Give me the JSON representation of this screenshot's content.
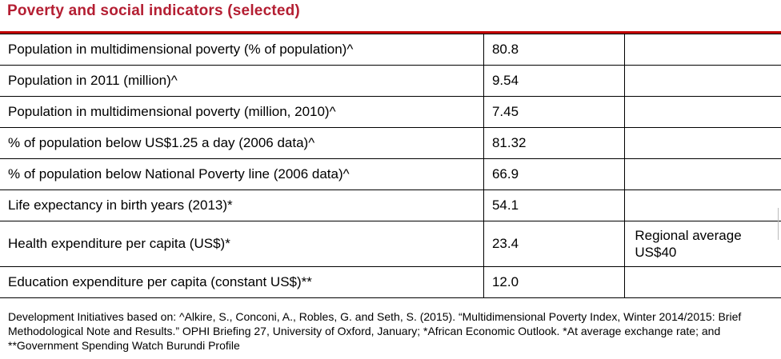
{
  "title": "Poverty and social indicators (selected)",
  "rows": [
    {
      "label": "Population in multidimensional poverty (% of population)^",
      "value": "80.8",
      "note": ""
    },
    {
      "label": "Population in 2011 (million)^",
      "value": "9.54",
      "note": ""
    },
    {
      "label": "Population in multidimensional poverty (million, 2010)^",
      "value": "7.45",
      "note": ""
    },
    {
      "label": "% of population below US$1.25 a day (2006 data)^",
      "value": "81.32",
      "note": ""
    },
    {
      "label": "% of population below National Poverty line (2006 data)^",
      "value": "66.9",
      "note": ""
    },
    {
      "label": "Life expectancy in birth years (2013)*",
      "value": "54.1",
      "note": ""
    },
    {
      "label": "Health expenditure per capita (US$)*",
      "value": "23.4",
      "note": "Regional average US$40"
    },
    {
      "label": "Education expenditure per capita (constant US$)**",
      "value": "12.0",
      "note": ""
    }
  ],
  "footnote": "Development Initiatives based on: ^Alkire, S., Conconi, A., Robles, G. and Seth, S. (2015). “Multidimensional Poverty Index, Winter 2014/2015: Brief Methodological Note and Results.” OPHI Briefing 27, University of Oxford, January; *African Economic Outlook. *At average exchange rate; and **Government Spending Watch Burundi Profile",
  "colors": {
    "title": "#b41e32",
    "rule": "#c00000",
    "border": "#000000"
  }
}
